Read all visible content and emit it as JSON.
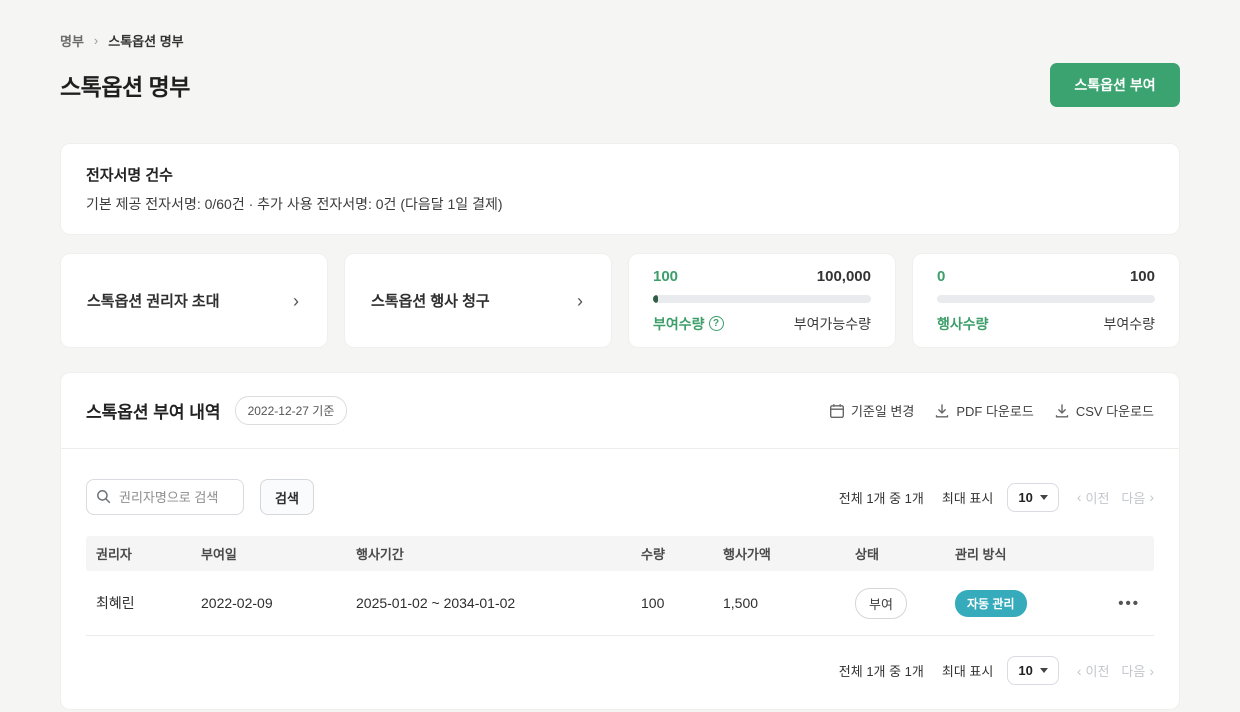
{
  "breadcrumb": {
    "root": "명부",
    "current": "스톡옵션 명부"
  },
  "header": {
    "title": "스톡옵션 명부",
    "grant_button_label": "스톡옵션 부여"
  },
  "esign_card": {
    "title": "전자서명 건수",
    "description": "기본 제공 전자서명: 0/60건  ·  추가 사용 전자서명: 0건 (다음달 1일 결제)"
  },
  "action_cards": [
    {
      "label": "스톡옵션 권리자 초대"
    },
    {
      "label": "스톡옵션 행사 청구"
    }
  ],
  "stat_cards": [
    {
      "left_value": "100",
      "right_value": "100,000",
      "left_label": "부여수량",
      "right_label": "부여가능수량",
      "progress_percent": 0.1,
      "help_icon": "?"
    },
    {
      "left_value": "0",
      "right_value": "100",
      "left_label": "행사수량",
      "right_label": "부여수량",
      "progress_percent": 0
    }
  ],
  "grant_section": {
    "title": "스톡옵션 부여 내역",
    "date_badge": "2022-12-27 기준",
    "actions": {
      "change_date": "기준일 변경",
      "pdf_download": "PDF 다운로드",
      "csv_download": "CSV 다운로드"
    },
    "search": {
      "placeholder": "권리자명으로 검색",
      "button_label": "검색"
    },
    "pagination": {
      "summary": "전체 1개 중 1개",
      "max_label": "최대 표시",
      "page_size": "10",
      "prev_label": "이전",
      "next_label": "다음"
    },
    "table": {
      "columns": {
        "holder": "권리자",
        "grant_date": "부여일",
        "exercise_period": "행사기간",
        "quantity": "수량",
        "exercise_price": "행사가액",
        "status": "상태",
        "management": "관리 방식"
      },
      "rows": [
        {
          "holder": "최혜린",
          "grant_date": "2022-02-09",
          "exercise_period": "2025-01-02 ~ 2034-01-02",
          "quantity": "100",
          "exercise_price": "1,500",
          "status": "부여",
          "management": "자동 관리"
        }
      ]
    }
  },
  "colors": {
    "accent_green": "#3aa36f",
    "green_text": "#3d9e6a",
    "teal_badge": "#36abbc",
    "page_background": "#f5f5f4"
  }
}
